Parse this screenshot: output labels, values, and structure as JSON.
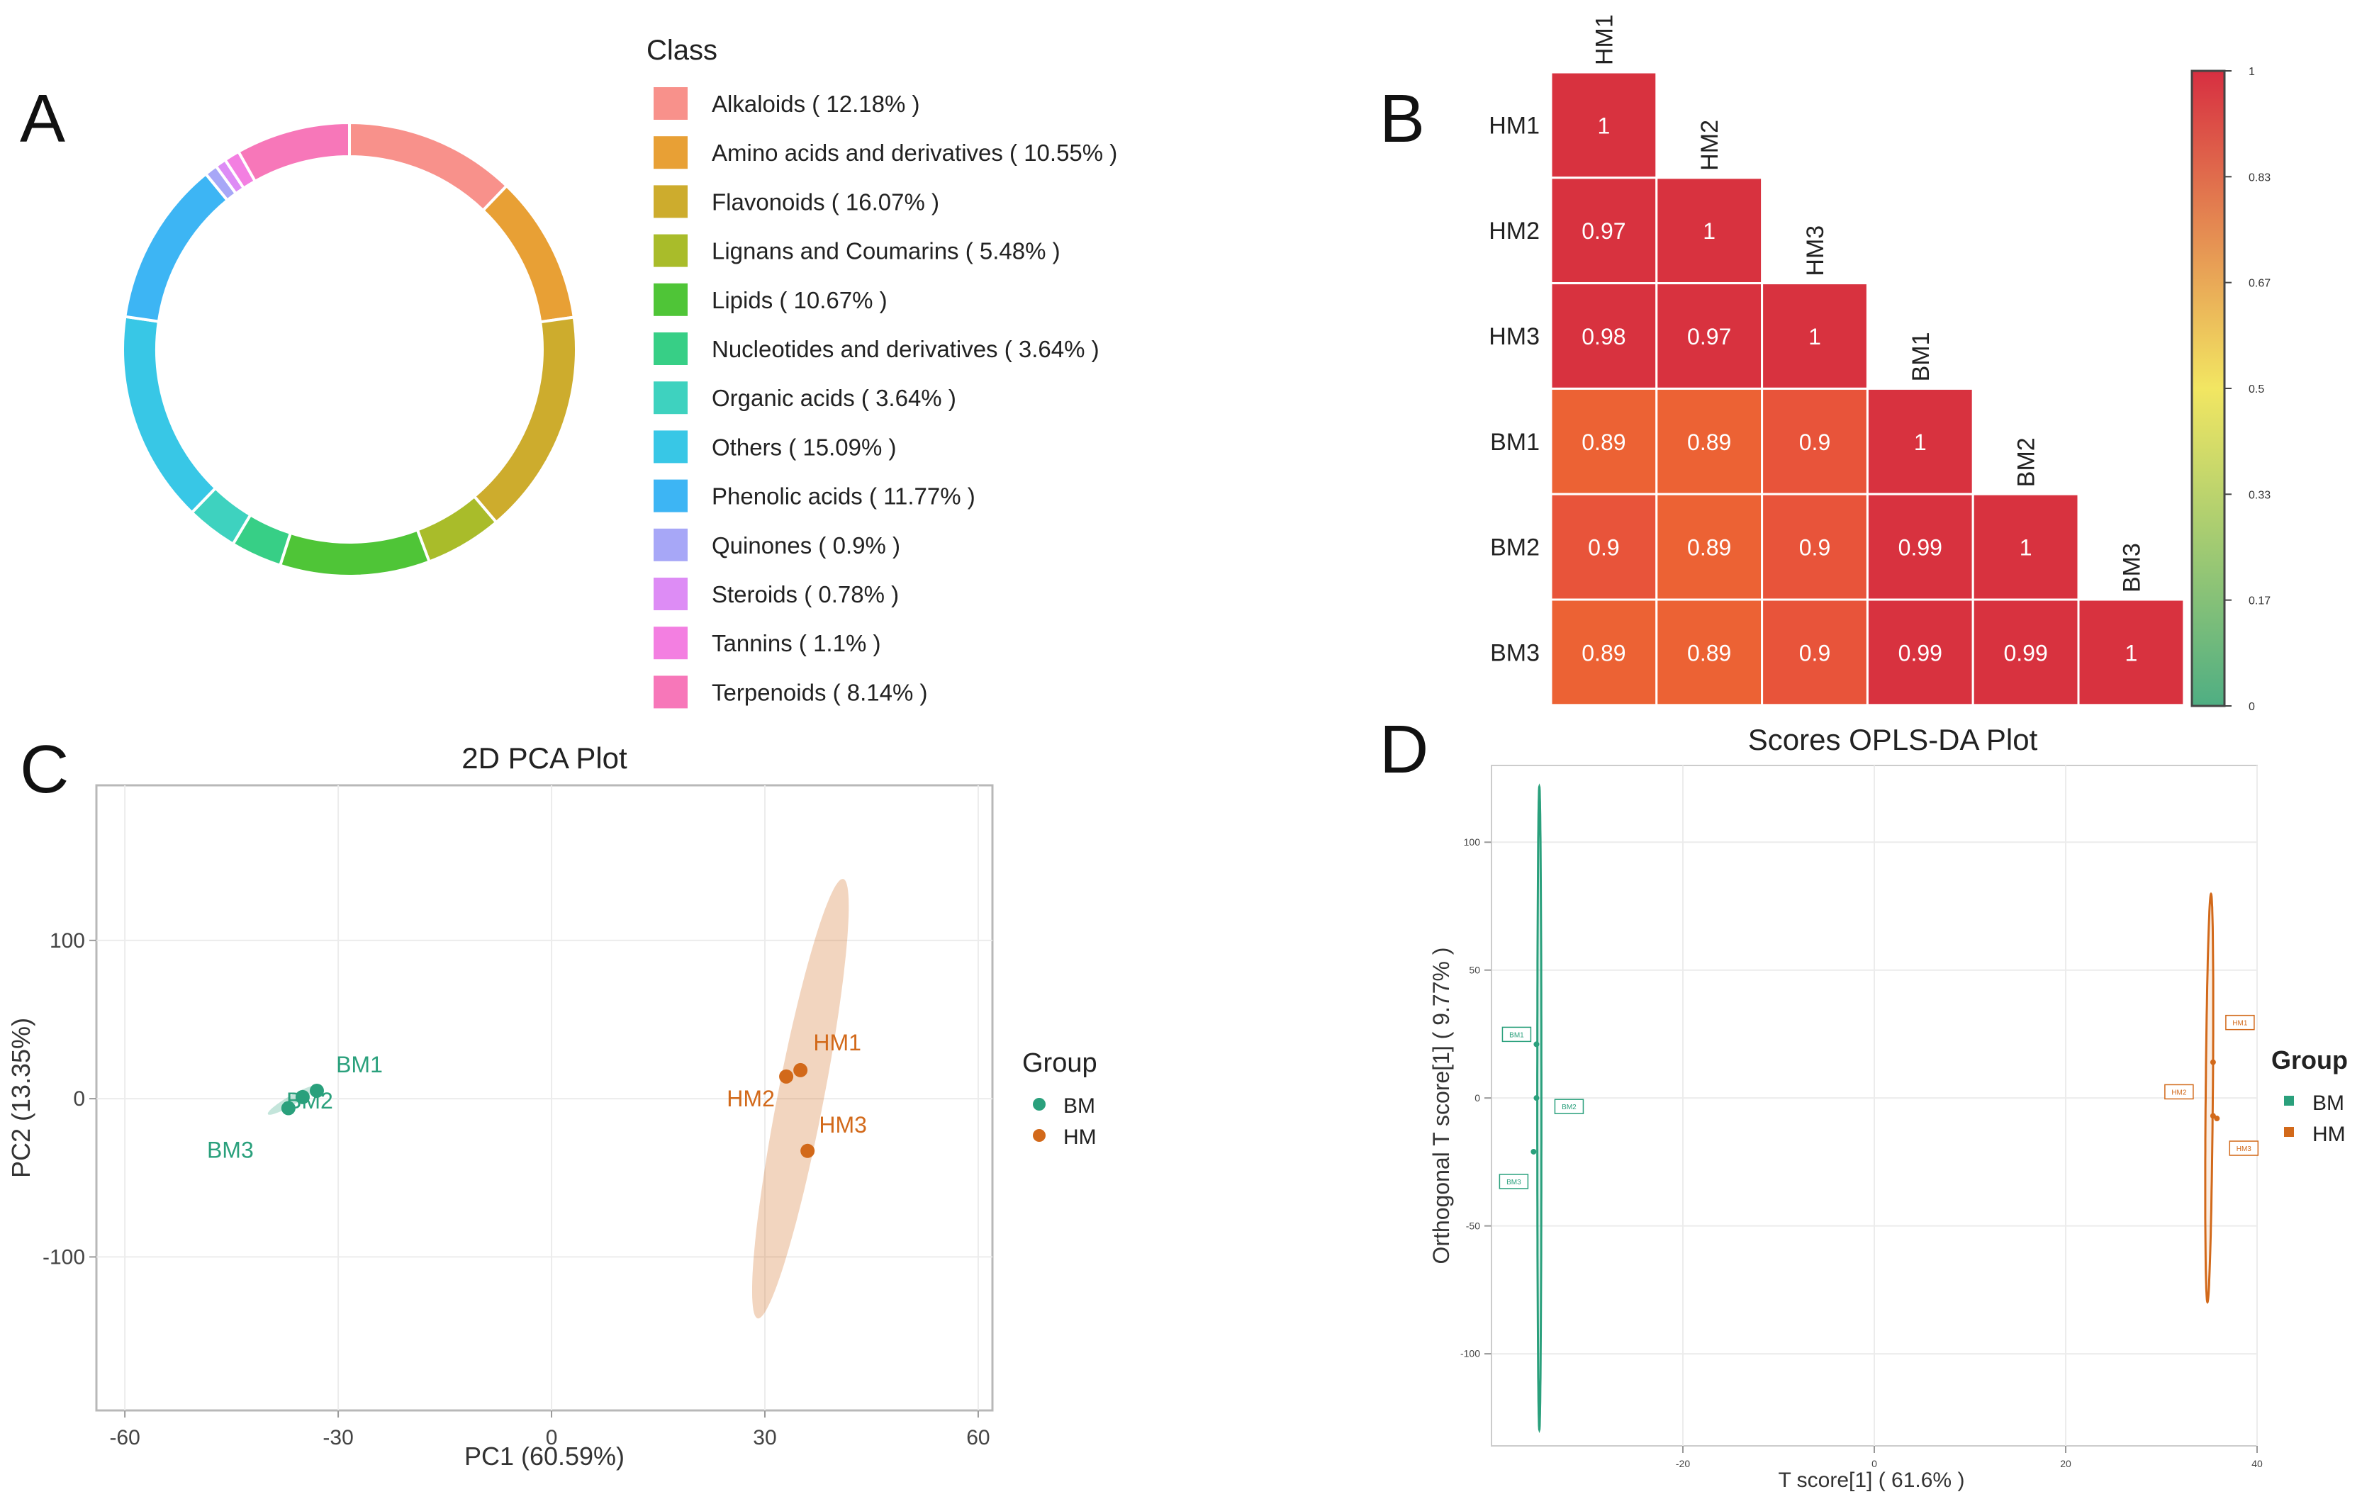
{
  "panels": {
    "a": {
      "label": "A"
    },
    "b": {
      "label": "B"
    },
    "c": {
      "label": "C"
    },
    "d": {
      "label": "D"
    }
  },
  "chart_data": [
    {
      "type": "pie",
      "panel": "A",
      "legend_title": "Class",
      "slices": [
        {
          "name": "Alkaloids",
          "value": 12.18,
          "label": "Alkaloids ( 12.18% )",
          "color": "#f8918b"
        },
        {
          "name": "Amino acids and derivatives",
          "value": 10.55,
          "label": "Amino acids and derivatives ( 10.55% )",
          "color": "#e8a035"
        },
        {
          "name": "Flavonoids",
          "value": 16.07,
          "label": "Flavonoids ( 16.07% )",
          "color": "#cdac2d"
        },
        {
          "name": "Lignans and Coumarins",
          "value": 5.48,
          "label": "Lignans and Coumarins ( 5.48% )",
          "color": "#a9bc2a"
        },
        {
          "name": "Lipids",
          "value": 10.67,
          "label": "Lipids ( 10.67% )",
          "color": "#4fc537"
        },
        {
          "name": "Nucleotides and derivatives",
          "value": 3.64,
          "label": "Nucleotides and derivatives ( 3.64% )",
          "color": "#37cf86"
        },
        {
          "name": "Organic acids",
          "value": 3.64,
          "label": "Organic acids ( 3.64% )",
          "color": "#3ed2bf"
        },
        {
          "name": "Others",
          "value": 15.09,
          "label": "Others ( 15.09% )",
          "color": "#38c7e6"
        },
        {
          "name": "Phenolic acids",
          "value": 11.77,
          "label": "Phenolic acids ( 11.77% )",
          "color": "#3db5f4"
        },
        {
          "name": "Quinones",
          "value": 0.9,
          "label": "Quinones ( 0.9% )",
          "color": "#a7a7f7"
        },
        {
          "name": "Steroids",
          "value": 0.78,
          "label": "Steroids ( 0.78% )",
          "color": "#dd8cf5"
        },
        {
          "name": "Tannins",
          "value": 1.1,
          "label": "Tannins ( 1.1% )",
          "color": "#f37fe1"
        },
        {
          "name": "Terpenoids",
          "value": 8.14,
          "label": "Terpenoids ( 8.14% )",
          "color": "#f777b9"
        }
      ]
    },
    {
      "type": "heatmap",
      "panel": "B",
      "samples": [
        "HM1",
        "HM2",
        "HM3",
        "BM1",
        "BM2",
        "BM3"
      ],
      "matrix": [
        [
          1
        ],
        [
          0.97,
          1
        ],
        [
          0.98,
          0.97,
          1
        ],
        [
          0.89,
          0.89,
          0.9,
          1
        ],
        [
          0.9,
          0.89,
          0.9,
          0.99,
          1
        ],
        [
          0.89,
          0.89,
          0.9,
          0.99,
          0.99,
          1
        ]
      ],
      "colorbar_ticks": [
        "1",
        "0.83",
        "0.67",
        "0.5",
        "0.33",
        "0.17",
        "0"
      ],
      "color_stops": {
        "low": "#4fae83",
        "mid": "#f2e662",
        "high": "#d72f41"
      }
    },
    {
      "type": "scatter",
      "panel": "C",
      "title": "2D PCA Plot",
      "xlabel": "PC1 (60.59%)",
      "ylabel": "PC2 (13.35%)",
      "xlim": [
        -64,
        62
      ],
      "ylim": [
        -197,
        198
      ],
      "xticks": [
        -60,
        -30,
        0,
        30,
        60
      ],
      "xtick_labels": [
        "-60",
        "-30",
        "0",
        "30",
        "60"
      ],
      "yticks": [
        100,
        0,
        -100
      ],
      "ytick_labels": [
        "100",
        "0",
        "-100"
      ],
      "legend_title": "Group",
      "groups": [
        {
          "name": "BM",
          "color": "#2aa07c",
          "ellipse": {
            "cx": -36.5,
            "cy": -1,
            "rx": 17.5,
            "ry": 3,
            "angle_deg": 30
          },
          "points": [
            {
              "label": "BM1",
              "x": -33,
              "y": 5
            },
            {
              "label": "BM2",
              "x": -35,
              "y": 1
            },
            {
              "label": "BM3",
              "x": -37,
              "y": -6
            }
          ]
        },
        {
          "name": "HM",
          "color": "#d2691a",
          "ellipse": {
            "cx": 35,
            "cy": 0,
            "rx": 141,
            "ry": 14.5,
            "angle_deg": 79
          },
          "points": [
            {
              "label": "HM1",
              "x": 35,
              "y": 18
            },
            {
              "label": "HM2",
              "x": 33,
              "y": 14
            },
            {
              "label": "HM3",
              "x": 36,
              "y": -33
            }
          ]
        }
      ]
    },
    {
      "type": "scatter",
      "panel": "D",
      "title": "Scores OPLS-DA Plot",
      "xlabel": "T score[1] ( 61.6% )",
      "ylabel": "Orthogonal T score[1] ( 9.77% )",
      "xlim": [
        -40,
        40
      ],
      "ylim": [
        -136,
        130
      ],
      "xticks": [
        -20,
        0,
        20,
        40
      ],
      "xtick_labels": [
        "-20",
        "0",
        "20",
        "40"
      ],
      "yticks": [
        100,
        50,
        0,
        -50,
        -100
      ],
      "ytick_labels": [
        "100",
        "50",
        "0",
        "-50",
        "-100"
      ],
      "legend_title": "Group",
      "groups": [
        {
          "name": "BM",
          "color": "#2aa07c",
          "ellipse": {
            "cx": -35,
            "cy": -4,
            "rx": 126,
            "ry": 0.8,
            "angle_deg": 90
          },
          "points": [
            {
              "label": "BM1",
              "x": -35.3,
              "y": 21
            },
            {
              "label": "BM2",
              "x": -35.3,
              "y": 0
            },
            {
              "label": "BM3",
              "x": -35.6,
              "y": -21
            }
          ]
        },
        {
          "name": "HM",
          "color": "#d2691a",
          "ellipse": {
            "cx": 35,
            "cy": 0,
            "rx": 80,
            "ry": 1.4,
            "angle_deg": 89.5
          },
          "points": [
            {
              "label": "HM1",
              "x": 35.4,
              "y": 14
            },
            {
              "label": "HM2",
              "x": 35.4,
              "y": -7
            },
            {
              "label": "HM3",
              "x": 35.8,
              "y": -8
            }
          ]
        }
      ]
    }
  ]
}
